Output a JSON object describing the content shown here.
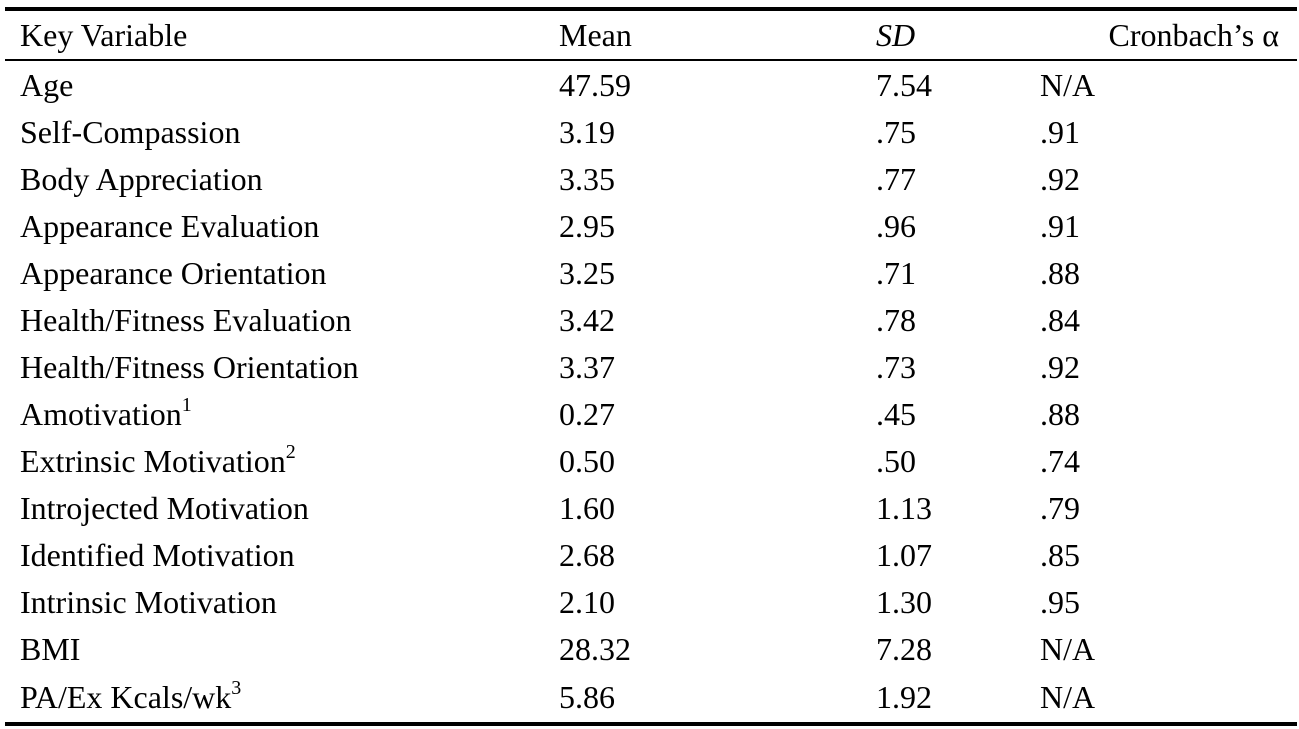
{
  "table": {
    "headers": {
      "variable": "Key Variable",
      "mean": "Mean",
      "sd": "SD",
      "alpha": "Cronbach’s α"
    },
    "rows": [
      {
        "variable": "Age",
        "sup": "",
        "mean": "47.59",
        "sd": "7.54",
        "alpha": "N/A"
      },
      {
        "variable": "Self-Compassion",
        "sup": "",
        "mean": "3.19",
        "sd": ".75",
        "alpha": ".91"
      },
      {
        "variable": "Body Appreciation",
        "sup": "",
        "mean": "3.35",
        "sd": ".77",
        "alpha": ".92"
      },
      {
        "variable": "Appearance Evaluation",
        "sup": "",
        "mean": "2.95",
        "sd": ".96",
        "alpha": ".91"
      },
      {
        "variable": "Appearance Orientation",
        "sup": "",
        "mean": "3.25",
        "sd": ".71",
        "alpha": ".88"
      },
      {
        "variable": "Health/Fitness Evaluation",
        "sup": "",
        "mean": "3.42",
        "sd": ".78",
        "alpha": ".84"
      },
      {
        "variable": "Health/Fitness Orientation",
        "sup": "",
        "mean": "3.37",
        "sd": ".73",
        "alpha": ".92"
      },
      {
        "variable": "Amotivation",
        "sup": "1",
        "mean": "0.27",
        "sd": ".45",
        "alpha": ".88"
      },
      {
        "variable": "Extrinsic Motivation",
        "sup": "2",
        "mean": "0.50",
        "sd": ".50",
        "alpha": ".74"
      },
      {
        "variable": "Introjected Motivation",
        "sup": "",
        "mean": "1.60",
        "sd": "1.13",
        "alpha": ".79"
      },
      {
        "variable": "Identified Motivation",
        "sup": "",
        "mean": "2.68",
        "sd": "1.07",
        "alpha": ".85"
      },
      {
        "variable": "Intrinsic Motivation",
        "sup": "",
        "mean": "2.10",
        "sd": "1.30",
        "alpha": ".95"
      },
      {
        "variable": "BMI",
        "sup": "",
        "mean": "28.32",
        "sd": "7.28",
        "alpha": "N/A"
      },
      {
        "variable": "PA/Ex Kcals/wk",
        "sup": "3",
        "mean": "5.86",
        "sd": "1.92",
        "alpha": "N/A"
      }
    ]
  }
}
